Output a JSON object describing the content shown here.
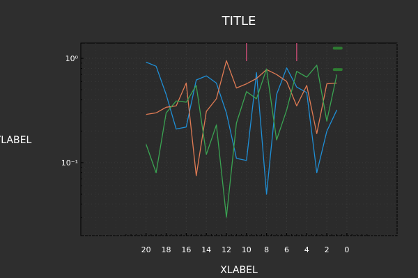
{
  "chart_data": {
    "type": "line",
    "title": "TITLE",
    "xlabel": "XLABEL",
    "ylabel": "YLABEL",
    "y_scale": "log",
    "x_reversed": true,
    "xlim": [
      26.5,
      -5
    ],
    "ylim": [
      0.02,
      1.4
    ],
    "grid": true,
    "x_ticks": [
      20,
      18,
      16,
      14,
      12,
      10,
      8,
      6,
      4,
      2,
      0
    ],
    "y_ticks": [
      {
        "value": 1,
        "label": "10⁰"
      },
      {
        "value": 0.1,
        "label": "10⁻¹"
      }
    ],
    "x": [
      20,
      19,
      18,
      17,
      16,
      15,
      14,
      13,
      12,
      11,
      10,
      9,
      8,
      7,
      6,
      5,
      4,
      3,
      2,
      1
    ],
    "series": [
      {
        "color": "#1f8fd6",
        "values": [
          0.92,
          0.84,
          0.45,
          0.21,
          0.22,
          0.62,
          0.68,
          0.58,
          0.3,
          0.11,
          0.105,
          0.73,
          0.05,
          0.45,
          0.81,
          0.53,
          0.47,
          0.08,
          0.2,
          0.32
        ]
      },
      {
        "color": "#e07b54",
        "values": [
          0.29,
          0.3,
          0.34,
          0.35,
          0.58,
          0.075,
          0.31,
          0.41,
          0.95,
          0.52,
          0.57,
          0.64,
          0.78,
          0.7,
          0.6,
          0.35,
          0.55,
          0.19,
          0.57,
          0.58
        ]
      },
      {
        "color": "#3aa352",
        "values": [
          0.15,
          0.08,
          0.3,
          0.39,
          0.38,
          0.55,
          0.12,
          0.23,
          0.03,
          0.24,
          0.48,
          0.41,
          0.79,
          0.165,
          0.32,
          0.75,
          0.66,
          0.86,
          0.25,
          0.7
        ]
      }
    ],
    "event_markers": {
      "color": "#e05080",
      "x": [
        10,
        5
      ]
    },
    "legend_swatches": [
      {
        "color": "#2e7d32",
        "x": 1.4,
        "y": 1.25
      },
      {
        "color": "#2e7d32",
        "x": 1.4,
        "y": 0.78
      }
    ]
  }
}
